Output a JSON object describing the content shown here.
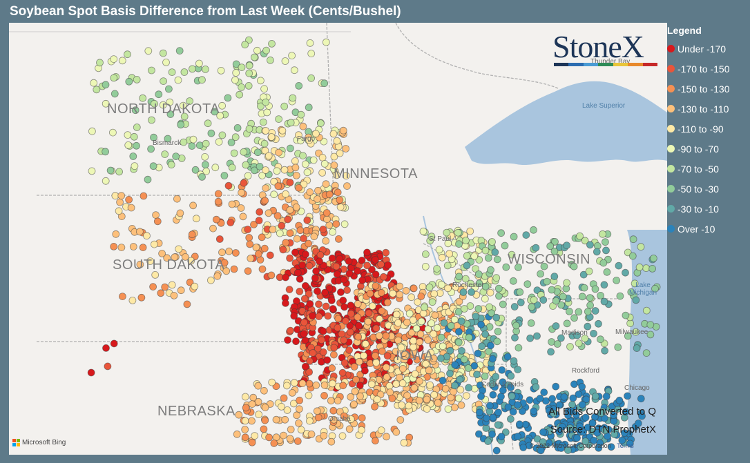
{
  "title": "Soybean Spot Basis Difference from Last Week (Cents/Bushel)",
  "legend": {
    "title": "Legend",
    "items": [
      {
        "label": "Under -170",
        "color": "#d7191c"
      },
      {
        "label": "-170 to -150",
        "color": "#e9553a"
      },
      {
        "label": "-150 to -130",
        "color": "#f59053"
      },
      {
        "label": "-130 to -110",
        "color": "#fdc07b"
      },
      {
        "label": "-110 to -90",
        "color": "#fee9a6"
      },
      {
        "label": "-90 to -70",
        "color": "#edf7b6"
      },
      {
        "label": "-70 to -50",
        "color": "#c3e6a0"
      },
      {
        "label": "-50 to -30",
        "color": "#92cc9a"
      },
      {
        "label": "-30 to -10",
        "color": "#61a9a7"
      },
      {
        "label": "Over -10",
        "color": "#2b83ba"
      }
    ]
  },
  "map": {
    "states": [
      "NORTH DAKOTA",
      "MINNESOTA",
      "SOUTH DAKOTA",
      "WISCONSIN",
      "NEBRASKA",
      "IOWA"
    ],
    "cities": [
      "Bismarck",
      "Fargo",
      "St Paul",
      "Rochester",
      "Madison",
      "Milwaukee",
      "Cedar Rapids",
      "Rockford",
      "Chicago",
      "Omaha",
      "Thunder Bay"
    ],
    "lakes": [
      "Lake Superior",
      "Lake Michigan"
    ],
    "credit_bing": "Microsoft Bing",
    "copyright": "© 2022 Microsoft Corporation",
    "terms_link": "Terms"
  },
  "logo": {
    "text": "StoneX",
    "bar_colors": [
      "#1d3557",
      "#2b6cb0",
      "#4a9bd4",
      "#2e8b57",
      "#e8c53a",
      "#e8892b",
      "#c62828"
    ]
  },
  "source": {
    "line1": "All Bids Converted to Q",
    "line2": "Source: DTN ProphetX"
  }
}
